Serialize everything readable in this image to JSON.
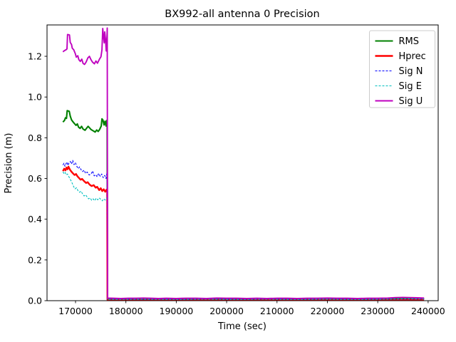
{
  "figure": {
    "background": "#ffffff"
  },
  "chart_data": {
    "type": "line",
    "title": "BX992-all antenna 0 Precision",
    "xlabel": "Time (sec)",
    "ylabel": "Precision (m)",
    "xlim": [
      164340,
      242000
    ],
    "ylim": [
      0,
      1.354
    ],
    "grid": false,
    "legend_position": "upper right",
    "axis_color": "#000000",
    "xticks": {
      "values": [
        170000,
        180000,
        190000,
        200000,
        210000,
        220000,
        230000,
        240000
      ],
      "labels": [
        "170000",
        "180000",
        "190000",
        "200000",
        "210000",
        "220000",
        "230000",
        "240000"
      ]
    },
    "yticks": {
      "values": [
        0.0,
        0.2,
        0.4,
        0.6,
        0.8,
        1.0,
        1.2
      ],
      "labels": [
        "0.0",
        "0.2",
        "0.4",
        "0.6",
        "0.8",
        "1.0",
        "1.2"
      ]
    },
    "series": [
      {
        "name": "RMS",
        "color": "#008000",
        "line_width": 2.1,
        "dash": null,
        "points": [
          [
            167500,
            0.877
          ],
          [
            167800,
            0.885
          ],
          [
            168000,
            0.898
          ],
          [
            168200,
            0.895
          ],
          [
            168350,
            0.933
          ],
          [
            168750,
            0.93
          ],
          [
            168950,
            0.906
          ],
          [
            169200,
            0.888
          ],
          [
            169500,
            0.878
          ],
          [
            169800,
            0.869
          ],
          [
            170100,
            0.861
          ],
          [
            170350,
            0.868
          ],
          [
            170600,
            0.852
          ],
          [
            170900,
            0.846
          ],
          [
            171200,
            0.856
          ],
          [
            171500,
            0.843
          ],
          [
            171900,
            0.837
          ],
          [
            172200,
            0.847
          ],
          [
            172500,
            0.856
          ],
          [
            172800,
            0.848
          ],
          [
            173100,
            0.84
          ],
          [
            173500,
            0.834
          ],
          [
            173900,
            0.828
          ],
          [
            174200,
            0.838
          ],
          [
            174500,
            0.831
          ],
          [
            174800,
            0.841
          ],
          [
            175100,
            0.858
          ],
          [
            175250,
            0.893
          ],
          [
            175450,
            0.887
          ],
          [
            175650,
            0.863
          ],
          [
            175850,
            0.881
          ],
          [
            176050,
            0.858
          ],
          [
            176200,
            0.885
          ],
          [
            176280,
            0.87
          ],
          [
            176330,
            0.01
          ],
          [
            178000,
            0.009
          ],
          [
            181000,
            0.01
          ],
          [
            184000,
            0.009
          ],
          [
            187000,
            0.01
          ],
          [
            190000,
            0.009
          ],
          [
            193000,
            0.01
          ],
          [
            196000,
            0.009
          ],
          [
            199000,
            0.01
          ],
          [
            202000,
            0.009
          ],
          [
            205000,
            0.01
          ],
          [
            208000,
            0.009
          ],
          [
            211000,
            0.01
          ],
          [
            214000,
            0.009
          ],
          [
            217000,
            0.01
          ],
          [
            220000,
            0.01
          ],
          [
            223000,
            0.009
          ],
          [
            226000,
            0.01
          ],
          [
            229000,
            0.01
          ],
          [
            232000,
            0.01
          ],
          [
            234500,
            0.011
          ],
          [
            237000,
            0.011
          ],
          [
            239200,
            0.01
          ]
        ]
      },
      {
        "name": "Hprec",
        "color": "#ff0000",
        "line_width": 2.4,
        "dash": null,
        "points": [
          [
            167500,
            0.636
          ],
          [
            167750,
            0.648
          ],
          [
            168000,
            0.64
          ],
          [
            168200,
            0.654
          ],
          [
            168400,
            0.645
          ],
          [
            168600,
            0.658
          ],
          [
            168900,
            0.643
          ],
          [
            169200,
            0.633
          ],
          [
            169500,
            0.625
          ],
          [
            169800,
            0.617
          ],
          [
            170100,
            0.622
          ],
          [
            170400,
            0.61
          ],
          [
            170700,
            0.602
          ],
          [
            171000,
            0.594
          ],
          [
            171300,
            0.598
          ],
          [
            171700,
            0.587
          ],
          [
            172100,
            0.578
          ],
          [
            172400,
            0.582
          ],
          [
            172800,
            0.57
          ],
          [
            173200,
            0.563
          ],
          [
            173600,
            0.567
          ],
          [
            174000,
            0.555
          ],
          [
            174300,
            0.559
          ],
          [
            174700,
            0.543
          ],
          [
            175000,
            0.552
          ],
          [
            175300,
            0.538
          ],
          [
            175600,
            0.547
          ],
          [
            175900,
            0.535
          ],
          [
            176150,
            0.545
          ],
          [
            176280,
            0.538
          ],
          [
            176330,
            0.004
          ],
          [
            179000,
            0.004
          ],
          [
            183000,
            0.004
          ],
          [
            187000,
            0.004
          ],
          [
            191000,
            0.004
          ],
          [
            195000,
            0.004
          ],
          [
            199000,
            0.004
          ],
          [
            203000,
            0.004
          ],
          [
            207000,
            0.004
          ],
          [
            211000,
            0.004
          ],
          [
            215000,
            0.004
          ],
          [
            219000,
            0.004
          ],
          [
            223000,
            0.004
          ],
          [
            227000,
            0.004
          ],
          [
            231000,
            0.004
          ],
          [
            235000,
            0.005
          ],
          [
            239200,
            0.005
          ]
        ]
      },
      {
        "name": "Sig N",
        "color": "#0000ff",
        "line_width": 1.1,
        "dash": [
          3,
          2
        ],
        "points": [
          [
            167500,
            0.666
          ],
          [
            167700,
            0.675
          ],
          [
            167900,
            0.66
          ],
          [
            168100,
            0.672
          ],
          [
            168300,
            0.681
          ],
          [
            168500,
            0.664
          ],
          [
            168700,
            0.676
          ],
          [
            168950,
            0.684
          ],
          [
            169200,
            0.671
          ],
          [
            169450,
            0.689
          ],
          [
            169700,
            0.668
          ],
          [
            169950,
            0.678
          ],
          [
            170250,
            0.66
          ],
          [
            170550,
            0.648
          ],
          [
            170800,
            0.657
          ],
          [
            171100,
            0.643
          ],
          [
            171400,
            0.634
          ],
          [
            171700,
            0.641
          ],
          [
            172000,
            0.625
          ],
          [
            172300,
            0.632
          ],
          [
            172700,
            0.617
          ],
          [
            173100,
            0.622
          ],
          [
            173400,
            0.637
          ],
          [
            173700,
            0.613
          ],
          [
            174000,
            0.619
          ],
          [
            174300,
            0.608
          ],
          [
            174600,
            0.625
          ],
          [
            174900,
            0.611
          ],
          [
            175200,
            0.622
          ],
          [
            175500,
            0.604
          ],
          [
            175800,
            0.615
          ],
          [
            176050,
            0.6
          ],
          [
            176250,
            0.63
          ],
          [
            176330,
            0.007
          ],
          [
            179500,
            0.007
          ],
          [
            183500,
            0.006
          ],
          [
            187500,
            0.007
          ],
          [
            191500,
            0.006
          ],
          [
            195500,
            0.007
          ],
          [
            199500,
            0.007
          ],
          [
            203500,
            0.006
          ],
          [
            207500,
            0.007
          ],
          [
            211500,
            0.007
          ],
          [
            215500,
            0.006
          ],
          [
            219500,
            0.007
          ],
          [
            223500,
            0.007
          ],
          [
            227500,
            0.006
          ],
          [
            231500,
            0.007
          ],
          [
            235000,
            0.008
          ],
          [
            239200,
            0.008
          ]
        ]
      },
      {
        "name": "Sig E",
        "color": "#00bfbf",
        "line_width": 1.1,
        "dash": [
          3,
          2
        ],
        "points": [
          [
            167500,
            0.633
          ],
          [
            167700,
            0.625
          ],
          [
            167900,
            0.631
          ],
          [
            168150,
            0.617
          ],
          [
            168400,
            0.622
          ],
          [
            168650,
            0.61
          ],
          [
            168900,
            0.598
          ],
          [
            169150,
            0.587
          ],
          [
            169400,
            0.573
          ],
          [
            169650,
            0.559
          ],
          [
            169900,
            0.549
          ],
          [
            170200,
            0.555
          ],
          [
            170500,
            0.54
          ],
          [
            170800,
            0.532
          ],
          [
            171100,
            0.538
          ],
          [
            171400,
            0.524
          ],
          [
            171700,
            0.514
          ],
          [
            172000,
            0.52
          ],
          [
            172300,
            0.509
          ],
          [
            172600,
            0.5
          ],
          [
            172900,
            0.505
          ],
          [
            173200,
            0.493
          ],
          [
            173500,
            0.5
          ],
          [
            173800,
            0.491
          ],
          [
            174100,
            0.503
          ],
          [
            174400,
            0.495
          ],
          [
            174700,
            0.505
          ],
          [
            175000,
            0.498
          ],
          [
            175300,
            0.49
          ],
          [
            175600,
            0.5
          ],
          [
            175900,
            0.494
          ],
          [
            176150,
            0.505
          ],
          [
            176280,
            0.498
          ],
          [
            176330,
            0.006
          ],
          [
            179000,
            0.006
          ],
          [
            183000,
            0.007
          ],
          [
            187000,
            0.006
          ],
          [
            191000,
            0.006
          ],
          [
            195000,
            0.007
          ],
          [
            199000,
            0.006
          ],
          [
            203000,
            0.006
          ],
          [
            207000,
            0.007
          ],
          [
            211000,
            0.006
          ],
          [
            215000,
            0.006
          ],
          [
            219000,
            0.007
          ],
          [
            223000,
            0.006
          ],
          [
            227000,
            0.006
          ],
          [
            231000,
            0.007
          ],
          [
            233500,
            0.008
          ],
          [
            236000,
            0.009
          ],
          [
            239200,
            0.008
          ]
        ]
      },
      {
        "name": "Sig U",
        "color": "#bf00bf",
        "line_width": 1.9,
        "dash": null,
        "points": [
          [
            167500,
            1.222
          ],
          [
            167800,
            1.228
          ],
          [
            168100,
            1.232
          ],
          [
            168300,
            1.236
          ],
          [
            168420,
            1.307
          ],
          [
            168800,
            1.305
          ],
          [
            168950,
            1.268
          ],
          [
            169200,
            1.258
          ],
          [
            169350,
            1.24
          ],
          [
            169650,
            1.232
          ],
          [
            169950,
            1.213
          ],
          [
            170150,
            1.196
          ],
          [
            170450,
            1.203
          ],
          [
            170650,
            1.184
          ],
          [
            170950,
            1.175
          ],
          [
            171250,
            1.186
          ],
          [
            171500,
            1.165
          ],
          [
            171800,
            1.16
          ],
          [
            172100,
            1.172
          ],
          [
            172450,
            1.192
          ],
          [
            172750,
            1.2
          ],
          [
            173050,
            1.184
          ],
          [
            173350,
            1.172
          ],
          [
            173750,
            1.163
          ],
          [
            174050,
            1.177
          ],
          [
            174350,
            1.166
          ],
          [
            174750,
            1.186
          ],
          [
            175050,
            1.198
          ],
          [
            175250,
            1.232
          ],
          [
            175400,
            1.337
          ],
          [
            175550,
            1.3
          ],
          [
            175700,
            1.266
          ],
          [
            175800,
            1.32
          ],
          [
            175950,
            1.283
          ],
          [
            176100,
            1.226
          ],
          [
            176250,
            1.3
          ],
          [
            176300,
            1.339
          ],
          [
            176360,
            0.013
          ],
          [
            177500,
            0.012
          ],
          [
            179000,
            0.011
          ],
          [
            180500,
            0.012
          ],
          [
            182000,
            0.012
          ],
          [
            183500,
            0.013
          ],
          [
            185000,
            0.012
          ],
          [
            186500,
            0.011
          ],
          [
            188000,
            0.012
          ],
          [
            190000,
            0.011
          ],
          [
            192000,
            0.012
          ],
          [
            194000,
            0.012
          ],
          [
            196000,
            0.011
          ],
          [
            198000,
            0.013
          ],
          [
            200000,
            0.012
          ],
          [
            202000,
            0.012
          ],
          [
            204000,
            0.011
          ],
          [
            206000,
            0.012
          ],
          [
            208000,
            0.011
          ],
          [
            210000,
            0.012
          ],
          [
            212000,
            0.012
          ],
          [
            214000,
            0.011
          ],
          [
            216000,
            0.012
          ],
          [
            218000,
            0.012
          ],
          [
            220000,
            0.013
          ],
          [
            222000,
            0.012
          ],
          [
            224000,
            0.012
          ],
          [
            226000,
            0.011
          ],
          [
            228000,
            0.012
          ],
          [
            230000,
            0.012
          ],
          [
            232000,
            0.013
          ],
          [
            233500,
            0.015
          ],
          [
            235000,
            0.016
          ],
          [
            236500,
            0.015
          ],
          [
            238000,
            0.014
          ],
          [
            239200,
            0.013
          ]
        ]
      }
    ]
  }
}
